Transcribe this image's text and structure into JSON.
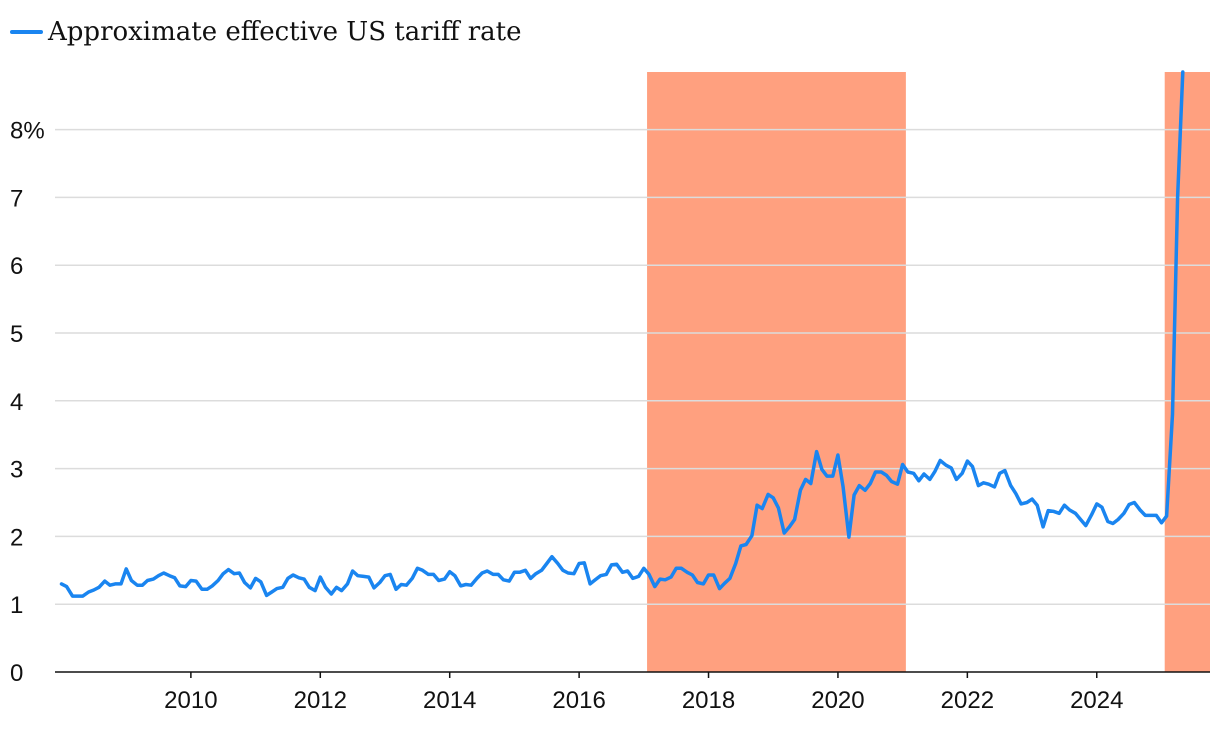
{
  "chart_data": {
    "type": "line",
    "title": "",
    "xlabel": "",
    "ylabel": "",
    "legend": {
      "position": "top-left",
      "entries": [
        "Approximate effective US tariff rate"
      ]
    },
    "colors": {
      "line": "#1a85f0",
      "shade": "#ffa07f",
      "grid": "#dcdcdc",
      "axis": "#111111"
    },
    "xlim": [
      2007.9,
      2025.75
    ],
    "ylim": [
      0,
      8.85
    ],
    "x_ticks": [
      {
        "value": 2010,
        "label": "2010"
      },
      {
        "value": 2012,
        "label": "2012"
      },
      {
        "value": 2014,
        "label": "2014"
      },
      {
        "value": 2016,
        "label": "2016"
      },
      {
        "value": 2018,
        "label": "2018"
      },
      {
        "value": 2020,
        "label": "2020"
      },
      {
        "value": 2022,
        "label": "2022"
      },
      {
        "value": 2024,
        "label": "2024"
      }
    ],
    "y_ticks": [
      {
        "value": 0,
        "label": "0"
      },
      {
        "value": 1,
        "label": "1"
      },
      {
        "value": 2,
        "label": "2"
      },
      {
        "value": 3,
        "label": "3"
      },
      {
        "value": 4,
        "label": "4"
      },
      {
        "value": 5,
        "label": "5"
      },
      {
        "value": 6,
        "label": "6"
      },
      {
        "value": 7,
        "label": "7"
      },
      {
        "value": 8,
        "label": "8%"
      }
    ],
    "shaded_periods": [
      {
        "start": 2017.05,
        "end": 2021.05
      },
      {
        "start": 2025.05,
        "end": 2025.75
      }
    ],
    "series": [
      {
        "name": "Approximate effective US tariff rate",
        "points": [
          [
            2008.0,
            1.3
          ],
          [
            2008.08,
            1.26
          ],
          [
            2008.17,
            1.12
          ],
          [
            2008.25,
            1.12
          ],
          [
            2008.33,
            1.12
          ],
          [
            2008.42,
            1.18
          ],
          [
            2008.5,
            1.21
          ],
          [
            2008.58,
            1.25
          ],
          [
            2008.67,
            1.34
          ],
          [
            2008.75,
            1.28
          ],
          [
            2008.83,
            1.3
          ],
          [
            2008.92,
            1.3
          ],
          [
            2009.0,
            1.52
          ],
          [
            2009.08,
            1.35
          ],
          [
            2009.17,
            1.28
          ],
          [
            2009.25,
            1.28
          ],
          [
            2009.33,
            1.35
          ],
          [
            2009.42,
            1.37
          ],
          [
            2009.5,
            1.42
          ],
          [
            2009.58,
            1.46
          ],
          [
            2009.67,
            1.42
          ],
          [
            2009.75,
            1.39
          ],
          [
            2009.83,
            1.27
          ],
          [
            2009.92,
            1.26
          ],
          [
            2010.0,
            1.35
          ],
          [
            2010.08,
            1.34
          ],
          [
            2010.17,
            1.22
          ],
          [
            2010.25,
            1.22
          ],
          [
            2010.33,
            1.27
          ],
          [
            2010.42,
            1.35
          ],
          [
            2010.5,
            1.45
          ],
          [
            2010.58,
            1.51
          ],
          [
            2010.67,
            1.45
          ],
          [
            2010.75,
            1.46
          ],
          [
            2010.83,
            1.32
          ],
          [
            2010.92,
            1.24
          ],
          [
            2011.0,
            1.38
          ],
          [
            2011.08,
            1.33
          ],
          [
            2011.17,
            1.13
          ],
          [
            2011.25,
            1.18
          ],
          [
            2011.33,
            1.23
          ],
          [
            2011.42,
            1.25
          ],
          [
            2011.5,
            1.38
          ],
          [
            2011.58,
            1.43
          ],
          [
            2011.67,
            1.39
          ],
          [
            2011.75,
            1.37
          ],
          [
            2011.83,
            1.25
          ],
          [
            2011.92,
            1.2
          ],
          [
            2012.0,
            1.4
          ],
          [
            2012.08,
            1.25
          ],
          [
            2012.17,
            1.15
          ],
          [
            2012.25,
            1.25
          ],
          [
            2012.33,
            1.2
          ],
          [
            2012.42,
            1.3
          ],
          [
            2012.5,
            1.49
          ],
          [
            2012.58,
            1.42
          ],
          [
            2012.67,
            1.41
          ],
          [
            2012.75,
            1.4
          ],
          [
            2012.83,
            1.24
          ],
          [
            2012.92,
            1.32
          ],
          [
            2013.0,
            1.42
          ],
          [
            2013.08,
            1.44
          ],
          [
            2013.17,
            1.22
          ],
          [
            2013.25,
            1.29
          ],
          [
            2013.33,
            1.28
          ],
          [
            2013.42,
            1.38
          ],
          [
            2013.5,
            1.53
          ],
          [
            2013.58,
            1.5
          ],
          [
            2013.67,
            1.44
          ],
          [
            2013.75,
            1.44
          ],
          [
            2013.83,
            1.35
          ],
          [
            2013.92,
            1.37
          ],
          [
            2014.0,
            1.48
          ],
          [
            2014.08,
            1.42
          ],
          [
            2014.17,
            1.27
          ],
          [
            2014.25,
            1.29
          ],
          [
            2014.33,
            1.28
          ],
          [
            2014.42,
            1.38
          ],
          [
            2014.5,
            1.46
          ],
          [
            2014.58,
            1.49
          ],
          [
            2014.67,
            1.44
          ],
          [
            2014.75,
            1.44
          ],
          [
            2014.83,
            1.36
          ],
          [
            2014.92,
            1.34
          ],
          [
            2015.0,
            1.47
          ],
          [
            2015.08,
            1.47
          ],
          [
            2015.17,
            1.5
          ],
          [
            2015.25,
            1.38
          ],
          [
            2015.33,
            1.45
          ],
          [
            2015.42,
            1.5
          ],
          [
            2015.5,
            1.6
          ],
          [
            2015.58,
            1.7
          ],
          [
            2015.67,
            1.6
          ],
          [
            2015.75,
            1.5
          ],
          [
            2015.83,
            1.46
          ],
          [
            2015.92,
            1.45
          ],
          [
            2016.0,
            1.6
          ],
          [
            2016.08,
            1.61
          ],
          [
            2016.17,
            1.3
          ],
          [
            2016.25,
            1.36
          ],
          [
            2016.33,
            1.42
          ],
          [
            2016.42,
            1.44
          ],
          [
            2016.5,
            1.58
          ],
          [
            2016.58,
            1.59
          ],
          [
            2016.67,
            1.47
          ],
          [
            2016.75,
            1.49
          ],
          [
            2016.83,
            1.38
          ],
          [
            2016.92,
            1.41
          ],
          [
            2017.0,
            1.53
          ],
          [
            2017.08,
            1.44
          ],
          [
            2017.17,
            1.26
          ],
          [
            2017.25,
            1.37
          ],
          [
            2017.33,
            1.36
          ],
          [
            2017.42,
            1.4
          ],
          [
            2017.5,
            1.53
          ],
          [
            2017.58,
            1.53
          ],
          [
            2017.67,
            1.47
          ],
          [
            2017.75,
            1.43
          ],
          [
            2017.83,
            1.32
          ],
          [
            2017.92,
            1.3
          ],
          [
            2018.0,
            1.43
          ],
          [
            2018.08,
            1.43
          ],
          [
            2018.17,
            1.23
          ],
          [
            2018.25,
            1.31
          ],
          [
            2018.33,
            1.38
          ],
          [
            2018.42,
            1.6
          ],
          [
            2018.5,
            1.86
          ],
          [
            2018.58,
            1.88
          ],
          [
            2018.67,
            2.01
          ],
          [
            2018.75,
            2.46
          ],
          [
            2018.83,
            2.41
          ],
          [
            2018.92,
            2.62
          ],
          [
            2019.0,
            2.57
          ],
          [
            2019.08,
            2.42
          ],
          [
            2019.17,
            2.05
          ],
          [
            2019.25,
            2.14
          ],
          [
            2019.33,
            2.25
          ],
          [
            2019.42,
            2.68
          ],
          [
            2019.5,
            2.84
          ],
          [
            2019.58,
            2.78
          ],
          [
            2019.67,
            3.25
          ],
          [
            2019.75,
            2.99
          ],
          [
            2019.83,
            2.89
          ],
          [
            2019.92,
            2.89
          ],
          [
            2020.0,
            3.2
          ],
          [
            2020.08,
            2.73
          ],
          [
            2020.17,
            1.99
          ],
          [
            2020.25,
            2.61
          ],
          [
            2020.33,
            2.75
          ],
          [
            2020.42,
            2.68
          ],
          [
            2020.5,
            2.78
          ],
          [
            2020.58,
            2.95
          ],
          [
            2020.67,
            2.95
          ],
          [
            2020.75,
            2.9
          ],
          [
            2020.83,
            2.81
          ],
          [
            2020.92,
            2.77
          ],
          [
            2021.0,
            3.06
          ],
          [
            2021.08,
            2.95
          ],
          [
            2021.17,
            2.93
          ],
          [
            2021.25,
            2.82
          ],
          [
            2021.33,
            2.92
          ],
          [
            2021.42,
            2.84
          ],
          [
            2021.5,
            2.96
          ],
          [
            2021.58,
            3.12
          ],
          [
            2021.67,
            3.05
          ],
          [
            2021.75,
            3.01
          ],
          [
            2021.83,
            2.84
          ],
          [
            2021.92,
            2.93
          ],
          [
            2022.0,
            3.11
          ],
          [
            2022.08,
            3.03
          ],
          [
            2022.17,
            2.75
          ],
          [
            2022.25,
            2.79
          ],
          [
            2022.33,
            2.77
          ],
          [
            2022.42,
            2.73
          ],
          [
            2022.5,
            2.93
          ],
          [
            2022.58,
            2.97
          ],
          [
            2022.67,
            2.75
          ],
          [
            2022.75,
            2.63
          ],
          [
            2022.83,
            2.48
          ],
          [
            2022.92,
            2.5
          ],
          [
            2023.0,
            2.55
          ],
          [
            2023.08,
            2.46
          ],
          [
            2023.17,
            2.14
          ],
          [
            2023.25,
            2.38
          ],
          [
            2023.33,
            2.37
          ],
          [
            2023.42,
            2.34
          ],
          [
            2023.5,
            2.46
          ],
          [
            2023.58,
            2.39
          ],
          [
            2023.67,
            2.34
          ],
          [
            2023.75,
            2.25
          ],
          [
            2023.83,
            2.16
          ],
          [
            2023.92,
            2.32
          ],
          [
            2024.0,
            2.48
          ],
          [
            2024.08,
            2.43
          ],
          [
            2024.17,
            2.22
          ],
          [
            2024.25,
            2.19
          ],
          [
            2024.33,
            2.25
          ],
          [
            2024.42,
            2.34
          ],
          [
            2024.5,
            2.47
          ],
          [
            2024.58,
            2.5
          ],
          [
            2024.67,
            2.39
          ],
          [
            2024.75,
            2.31
          ],
          [
            2024.83,
            2.31
          ],
          [
            2024.92,
            2.31
          ],
          [
            2025.0,
            2.2
          ],
          [
            2025.08,
            2.3
          ],
          [
            2025.17,
            3.8
          ],
          [
            2025.25,
            7.0
          ],
          [
            2025.33,
            8.85
          ]
        ]
      }
    ]
  }
}
